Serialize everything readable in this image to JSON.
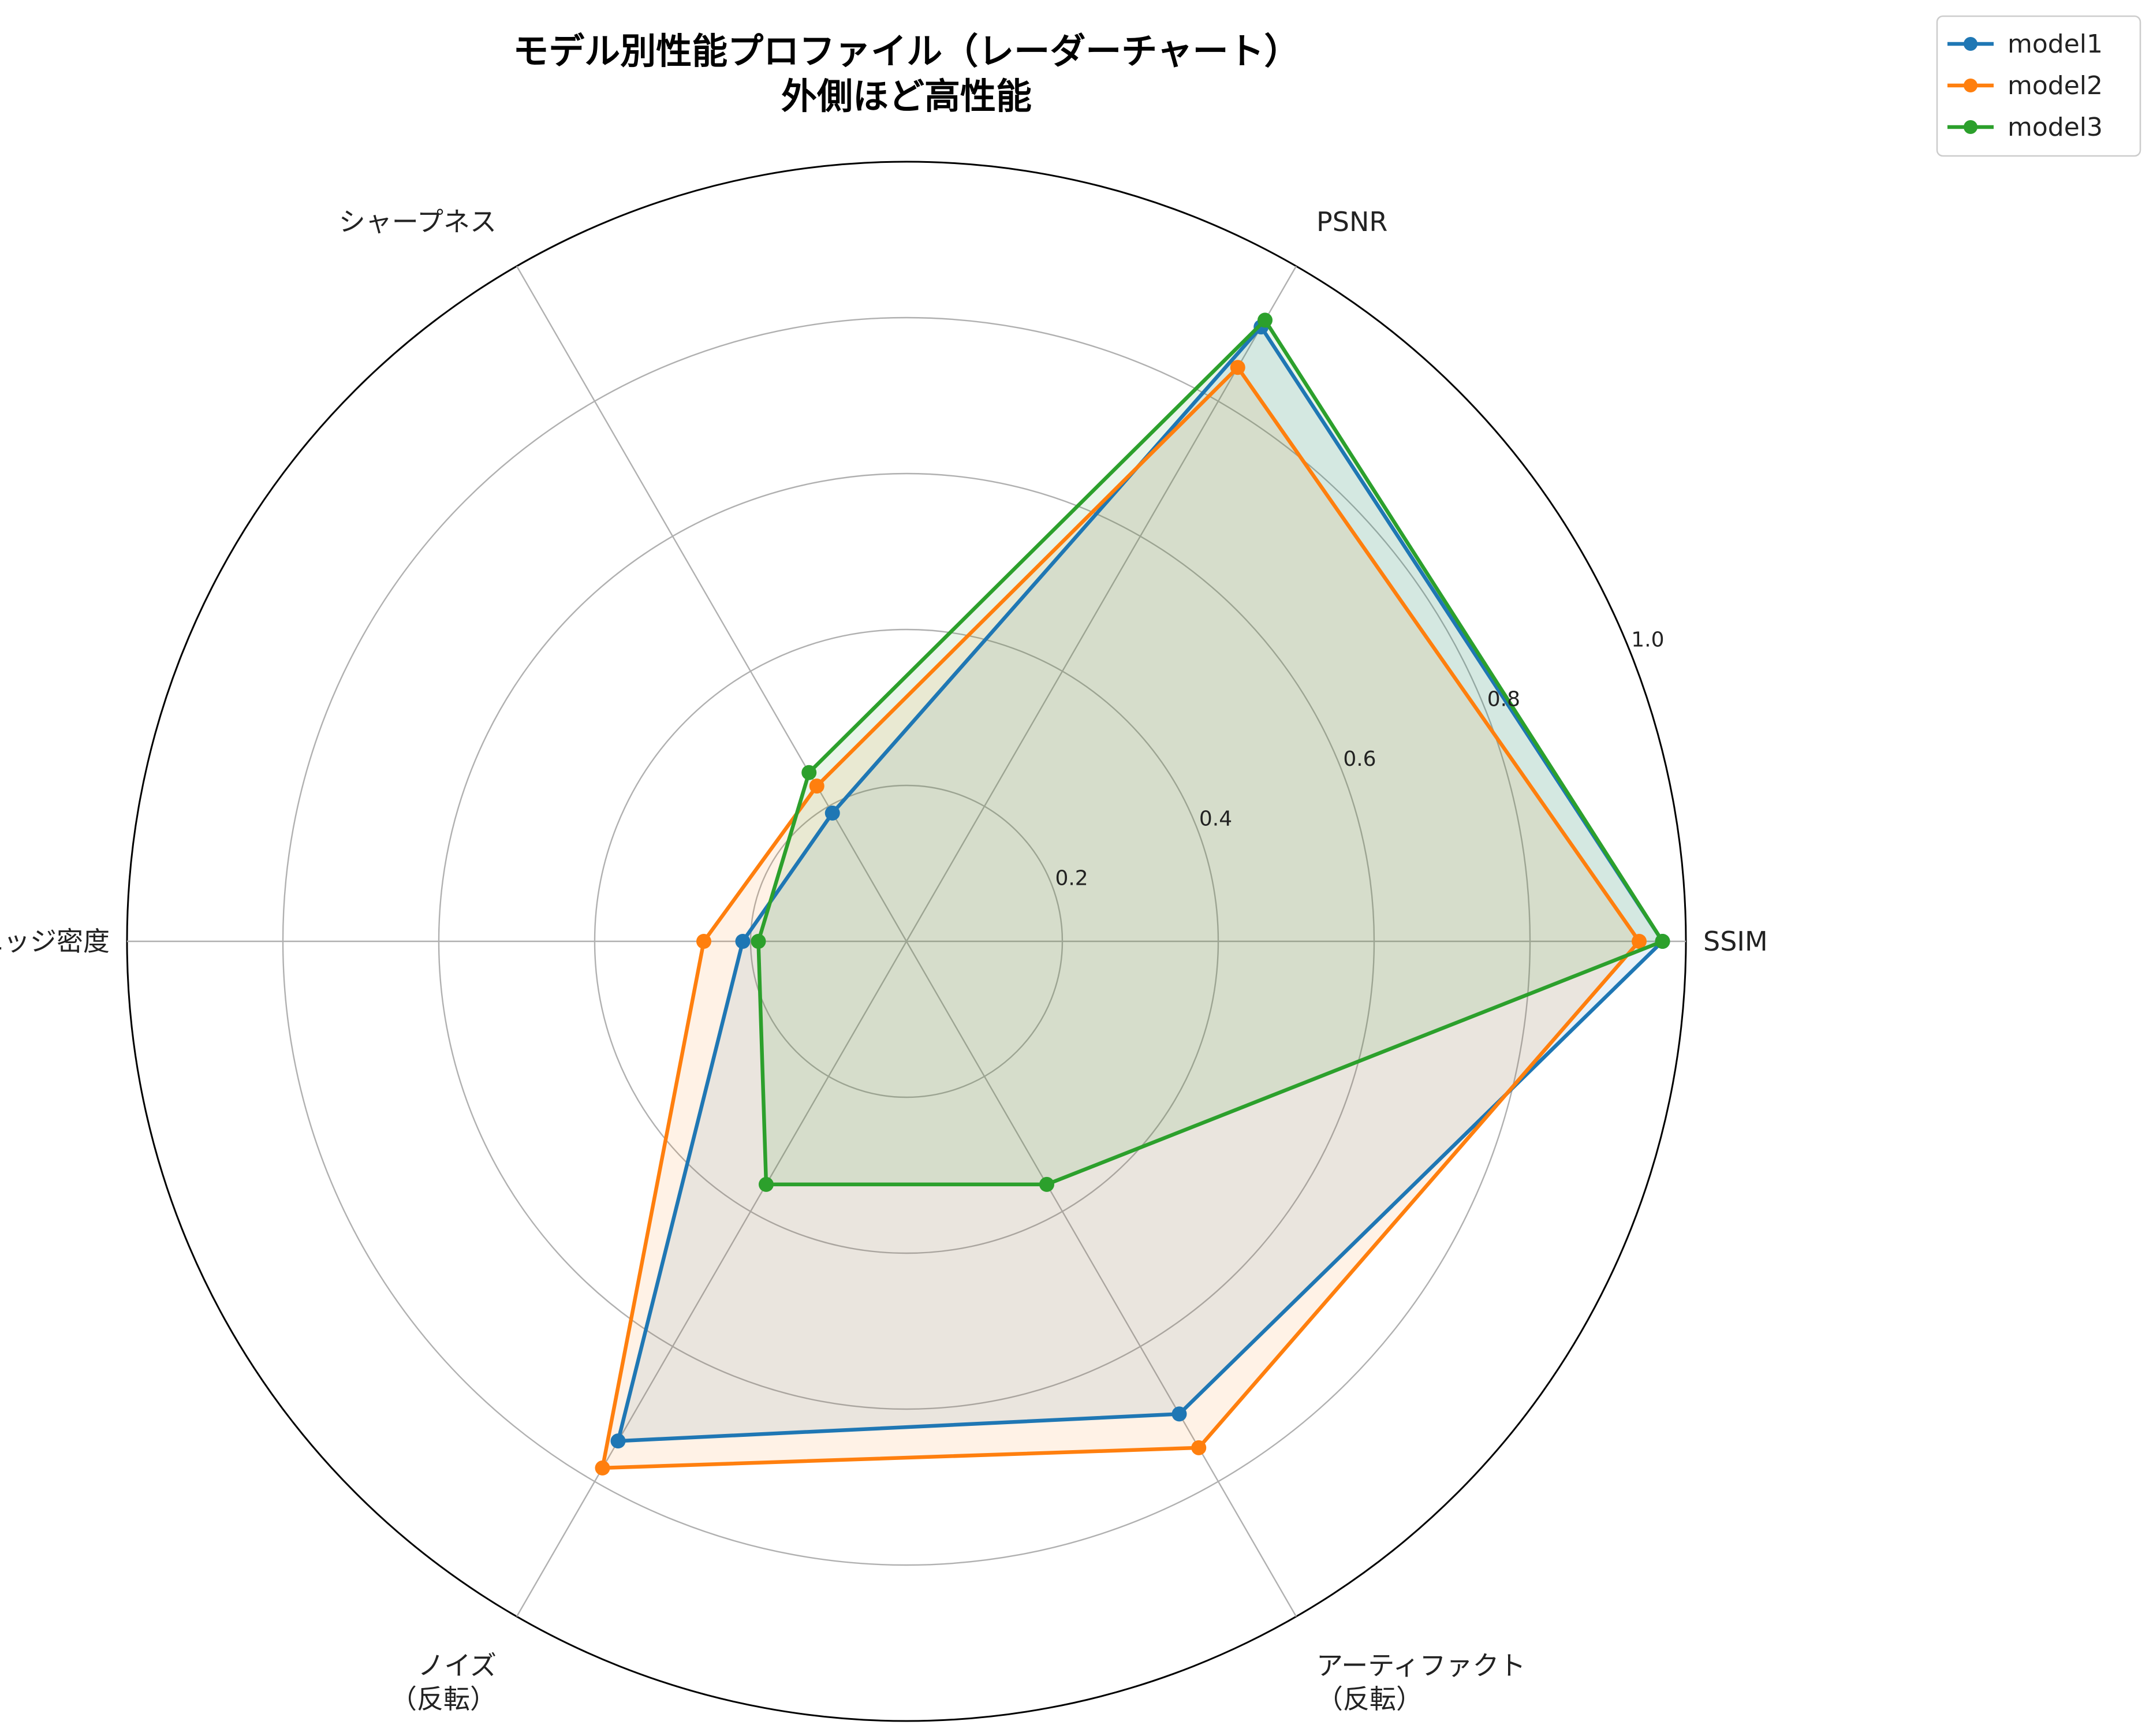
{
  "chart_data": {
    "type": "radar",
    "title_lines": [
      "モデル別性能プロファイル（レーダーチャート）",
      "外側ほど高性能"
    ],
    "axes": [
      {
        "label_lines": [
          "SSIM"
        ]
      },
      {
        "label_lines": [
          "PSNR"
        ]
      },
      {
        "label_lines": [
          "シャープネス"
        ]
      },
      {
        "label_lines": [
          "エッジ密度"
        ]
      },
      {
        "label_lines": [
          "ノイズ",
          "（反転）"
        ]
      },
      {
        "label_lines": [
          "アーティファクト",
          "（反転）"
        ]
      }
    ],
    "rlim": [
      0,
      1
    ],
    "rticks": [
      0.2,
      0.4,
      0.6,
      0.8,
      1.0
    ],
    "rtick_labels": [
      "0.2",
      "0.4",
      "0.6",
      "0.8",
      "1.0"
    ],
    "grid": true,
    "legend_position": "top-right",
    "series": [
      {
        "name": "model1",
        "color": "#1f77b4",
        "values": [
          0.97,
          0.91,
          0.19,
          0.21,
          0.74,
          0.7
        ]
      },
      {
        "name": "model2",
        "color": "#ff7f0e",
        "values": [
          0.94,
          0.85,
          0.23,
          0.26,
          0.78,
          0.75
        ]
      },
      {
        "name": "model3",
        "color": "#2ca02c",
        "values": [
          0.97,
          0.92,
          0.25,
          0.19,
          0.36,
          0.36
        ]
      }
    ]
  }
}
